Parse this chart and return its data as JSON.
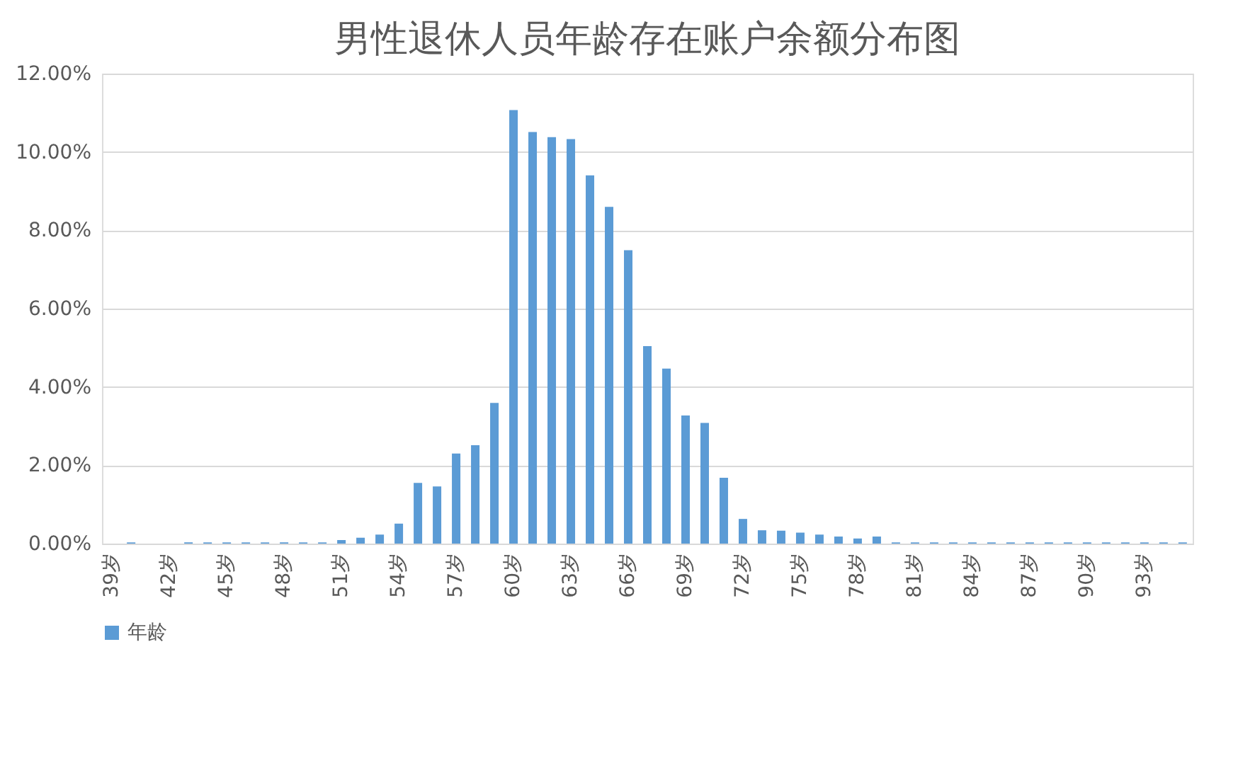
{
  "chart_data": {
    "type": "bar",
    "title": "男性退休人员年龄存在账户余额分布图",
    "categories": [
      "39岁",
      null,
      null,
      "42岁",
      null,
      null,
      "45岁",
      null,
      null,
      "48岁",
      null,
      null,
      "51岁",
      null,
      null,
      "54岁",
      null,
      null,
      "57岁",
      null,
      null,
      "60岁",
      null,
      null,
      "63岁",
      null,
      null,
      "66岁",
      null,
      null,
      "69岁",
      null,
      null,
      "72岁",
      null,
      null,
      "75岁",
      null,
      null,
      "78岁",
      null,
      null,
      "81岁",
      null,
      null,
      "84岁",
      null,
      null,
      "87岁",
      null,
      null,
      "90岁",
      null,
      null,
      "93岁",
      null,
      null
    ],
    "series": [
      {
        "name": "年龄",
        "color": "#5b9bd5",
        "values": [
          0,
          0.03,
          0,
          0,
          0.03,
          0.03,
          0.03,
          0.03,
          0.03,
          0.03,
          0.03,
          0.03,
          0.09,
          0.15,
          0.23,
          0.51,
          1.55,
          1.46,
          2.3,
          2.51,
          3.59,
          11.07,
          10.51,
          10.38,
          10.33,
          9.4,
          8.6,
          7.49,
          5.04,
          4.47,
          3.27,
          3.08,
          1.68,
          0.63,
          0.34,
          0.33,
          0.28,
          0.23,
          0.18,
          0.13,
          0.18,
          0.03,
          0.03,
          0.03,
          0.03,
          0.03,
          0.03,
          0.03,
          0.03,
          0.03,
          0.03,
          0.03,
          0.03,
          0.03,
          0.03,
          0.03,
          0.03
        ]
      }
    ],
    "ylim": [
      0,
      12
    ],
    "yticks": [
      {
        "value": 0,
        "label": "0.00%"
      },
      {
        "value": 2,
        "label": "2.00%"
      },
      {
        "value": 4,
        "label": "4.00%"
      },
      {
        "value": 6,
        "label": "6.00%"
      },
      {
        "value": 8,
        "label": "8.00%"
      },
      {
        "value": 10,
        "label": "10.00%"
      },
      {
        "value": 12,
        "label": "12.00%"
      }
    ],
    "grid": "y",
    "legend": "bottom"
  }
}
